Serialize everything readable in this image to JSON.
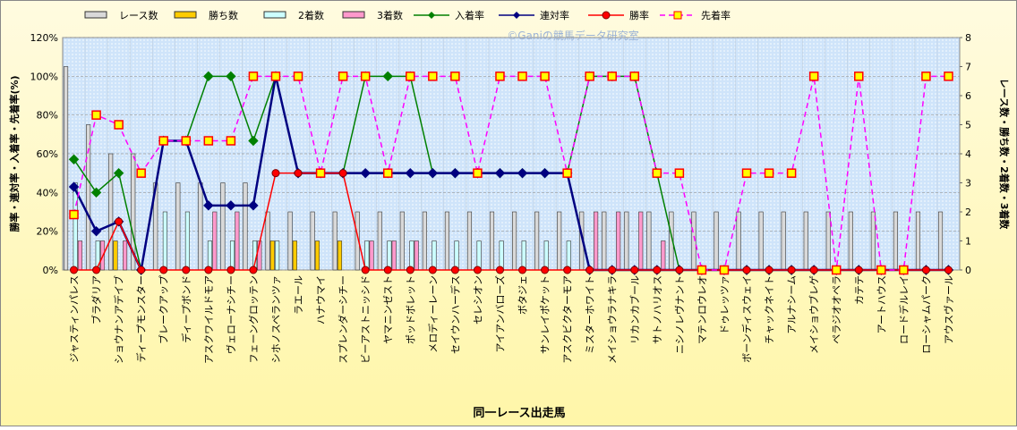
{
  "chart_data": {
    "type": "combo",
    "watermark": "©Ganiの競馬データ研究室",
    "xlabel": "同一レース出走馬",
    "ylabel": "勝率・連対率・入着率・先着率(%)",
    "y2label": "レース数・勝ち数・2着数・3着数",
    "categories": [
      "ジャスティンパレス",
      "ブラダリア",
      "ショウナンアデイブ",
      "ディープモンスター",
      "ブレークアップ",
      "ディープボンド",
      "アスクワイルドモア",
      "ヴェローナシチー",
      "フェーングロッテン",
      "シホノスペランツァ",
      "ラエール",
      "ハナウマイ",
      "スプレンダーシチー",
      "ビーアストニッシド",
      "ヤマニンゼスト",
      "ポッドボレット",
      "メロディーレーン",
      "セイウンハーデス",
      "セレシオン",
      "アイアンバローズ",
      "ボタジェ",
      "サンレイポケット",
      "アスクビクターモア",
      "ミスターホワイト",
      "メイショウラナキラ",
      "リカンカブール",
      "サトノハリオス",
      "ニシノレヴナント",
      "マテンロウレオ",
      "ドゥレッツァ",
      "ボーンディスウェイ",
      "チャックネイト",
      "アルナシーム",
      "メイショウブレゲ",
      "ペラジオオペラ",
      "カテテ",
      "アートハウス",
      "ロードデルレイ",
      "ローシャムパーク",
      "アウスヴァール"
    ],
    "ylim": [
      0,
      120
    ],
    "yticks": [
      {
        "value": 0,
        "label": "0%"
      },
      {
        "value": 20,
        "label": "20%"
      },
      {
        "value": 40,
        "label": "40%"
      },
      {
        "value": 60,
        "label": "60%"
      },
      {
        "value": 80,
        "label": "80%"
      },
      {
        "value": 100,
        "label": "100%"
      },
      {
        "value": 120,
        "label": "120%"
      }
    ],
    "y2lim": [
      0,
      8
    ],
    "y2ticks": [
      0,
      1,
      2,
      3,
      4,
      5,
      6,
      7,
      8
    ],
    "grid": true,
    "series": [
      {
        "name": "レース数",
        "type": "bar",
        "axis": "y2",
        "color": "#d9d9d9",
        "values": [
          7,
          5,
          4,
          4,
          3,
          3,
          3,
          3,
          3,
          2,
          2,
          2,
          2,
          2,
          2,
          2,
          2,
          2,
          2,
          2,
          2,
          2,
          2,
          2,
          2,
          2,
          2,
          2,
          2,
          2,
          2,
          2,
          2,
          2,
          2,
          2,
          2,
          2,
          2,
          2
        ]
      },
      {
        "name": "勝ち数",
        "type": "bar",
        "axis": "y2",
        "color": "#ffcc00",
        "values": [
          0,
          0,
          1,
          0,
          0,
          0,
          0,
          0,
          0,
          1,
          1,
          1,
          1,
          0,
          0,
          0,
          0,
          0,
          0,
          0,
          0,
          0,
          0,
          0,
          0,
          0,
          0,
          0,
          0,
          0,
          0,
          0,
          0,
          0,
          0,
          0,
          0,
          0,
          0,
          0
        ]
      },
      {
        "name": "2着数",
        "type": "bar",
        "axis": "y2",
        "color": "#ccffff",
        "values": [
          3,
          1,
          0,
          0,
          2,
          2,
          1,
          1,
          1,
          1,
          0,
          0,
          0,
          1,
          1,
          1,
          1,
          1,
          1,
          1,
          1,
          1,
          1,
          0,
          0,
          0,
          0,
          0,
          0,
          0,
          0,
          0,
          0,
          0,
          0,
          0,
          0,
          0,
          0,
          0
        ]
      },
      {
        "name": "3着数",
        "type": "bar",
        "axis": "y2",
        "color": "#ff99cc",
        "values": [
          1,
          1,
          1,
          0,
          0,
          0,
          2,
          2,
          1,
          0,
          0,
          0,
          0,
          1,
          1,
          1,
          0,
          0,
          0,
          0,
          0,
          0,
          0,
          2,
          2,
          2,
          1,
          0,
          0,
          0,
          0,
          0,
          0,
          0,
          0,
          0,
          0,
          0,
          0,
          0
        ]
      },
      {
        "name": "入着率",
        "type": "line",
        "marker": "diamond",
        "color": "#008000",
        "values": [
          57.1,
          40,
          50,
          0,
          66.7,
          66.7,
          100,
          100,
          66.7,
          100,
          50,
          50,
          50,
          100,
          100,
          100,
          50,
          50,
          50,
          50,
          50,
          50,
          50,
          100,
          100,
          100,
          50,
          0,
          0,
          0,
          0,
          0,
          0,
          0,
          0,
          0,
          0,
          0,
          0,
          0
        ]
      },
      {
        "name": "連対率",
        "type": "line",
        "marker": "diamond",
        "color": "#000080",
        "values": [
          42.9,
          20,
          25,
          0,
          66.7,
          66.7,
          33.3,
          33.3,
          33.3,
          100,
          50,
          50,
          50,
          50,
          50,
          50,
          50,
          50,
          50,
          50,
          50,
          50,
          50,
          0,
          0,
          0,
          0,
          0,
          0,
          0,
          0,
          0,
          0,
          0,
          0,
          0,
          0,
          0,
          0,
          0
        ]
      },
      {
        "name": "勝率",
        "type": "line",
        "marker": "circle",
        "color": "#ff0000",
        "values": [
          0,
          0,
          25,
          0,
          0,
          0,
          0,
          0,
          0,
          50,
          50,
          50,
          50,
          0,
          0,
          0,
          0,
          0,
          0,
          0,
          0,
          0,
          0,
          0,
          0,
          0,
          0,
          0,
          0,
          0,
          0,
          0,
          0,
          0,
          0,
          0,
          0,
          0,
          0,
          0
        ]
      },
      {
        "name": "先着率",
        "type": "line",
        "marker": "square",
        "dashed": true,
        "color": "#ff00ff",
        "values": [
          28.6,
          80,
          75,
          50,
          66.7,
          66.7,
          66.7,
          66.7,
          100,
          100,
          100,
          50,
          100,
          100,
          50,
          100,
          100,
          100,
          50,
          100,
          100,
          100,
          50,
          100,
          100,
          100,
          50,
          50,
          0,
          0,
          50,
          50,
          50,
          100,
          0,
          100,
          0,
          0,
          100,
          100
        ]
      }
    ]
  }
}
